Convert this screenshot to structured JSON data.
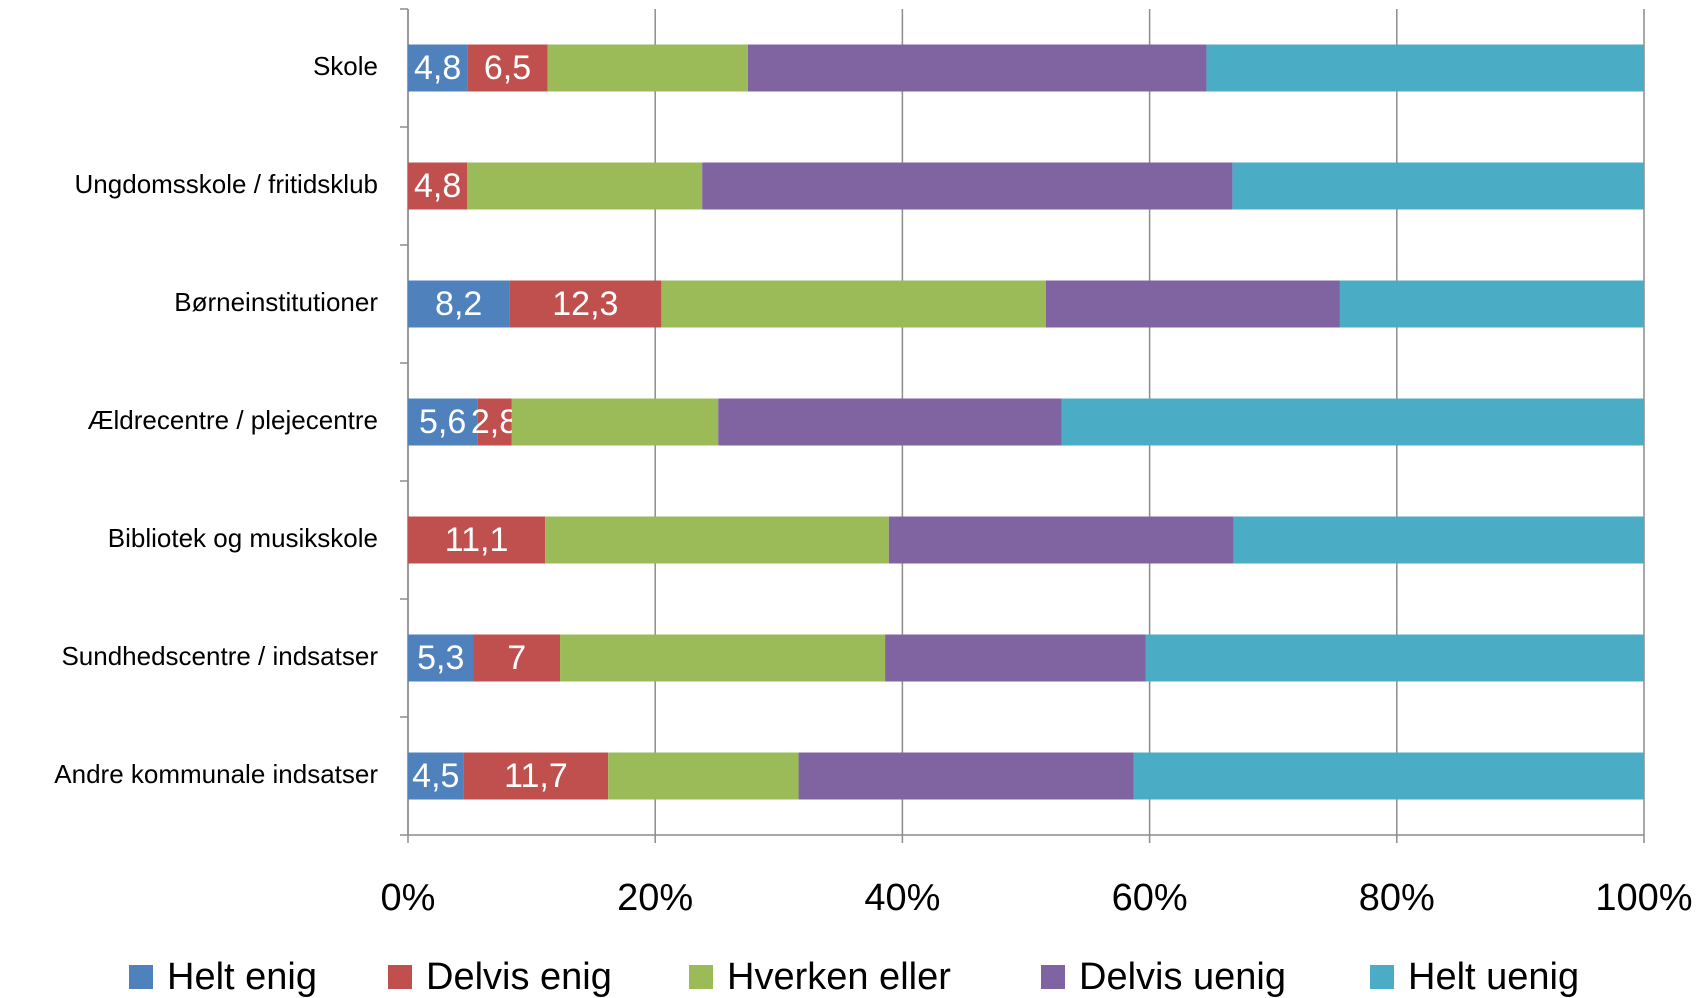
{
  "chart_data": {
    "type": "stacked_barh",
    "categories": [
      "Skole",
      "Ungdomsskole / fritidsklub",
      "Børneinstitutioner",
      "Ældrecentre / plejecentre",
      "Bibliotek og musikskole",
      "Sundhedscentre / indsatser",
      "Andre kommunale indsatser"
    ],
    "series": [
      {
        "name": "Helt enig",
        "color": "#4f81bd",
        "values": [
          4.8,
          0,
          8.2,
          5.6,
          0,
          5.3,
          4.5
        ],
        "value_labels": [
          "4,8",
          null,
          "8,2",
          "5,6",
          null,
          "5,3",
          "4,5"
        ]
      },
      {
        "name": "Delvis enig",
        "color": "#c0504d",
        "values": [
          6.5,
          4.8,
          12.3,
          2.8,
          11.1,
          7,
          11.7
        ],
        "value_labels": [
          "6,5",
          "4,8",
          "12,3",
          "2,8",
          "11,1",
          "7",
          "11,7"
        ]
      },
      {
        "name": "Hverken eller",
        "color": "#9bbb59",
        "values": [
          16.2,
          19.0,
          31.1,
          16.7,
          27.8,
          26.3,
          15.4
        ]
      },
      {
        "name": "Delvis uenig",
        "color": "#8064a2",
        "values": [
          37.1,
          42.9,
          23.8,
          27.8,
          27.9,
          21.1,
          27.1
        ]
      },
      {
        "name": "Helt uenig",
        "color": "#4bacc6",
        "values": [
          35.4,
          33.3,
          24.6,
          47.1,
          33.2,
          40.3,
          41.3
        ]
      }
    ],
    "xlim": [
      0,
      100
    ],
    "xticks": [
      {
        "value": 0,
        "label": "0%"
      },
      {
        "value": 20,
        "label": "20%"
      },
      {
        "value": 40,
        "label": "40%"
      },
      {
        "value": 60,
        "label": "60%"
      },
      {
        "value": 80,
        "label": "80%"
      },
      {
        "value": 100,
        "label": "100%"
      }
    ],
    "grid": true,
    "legend": "bottom"
  }
}
